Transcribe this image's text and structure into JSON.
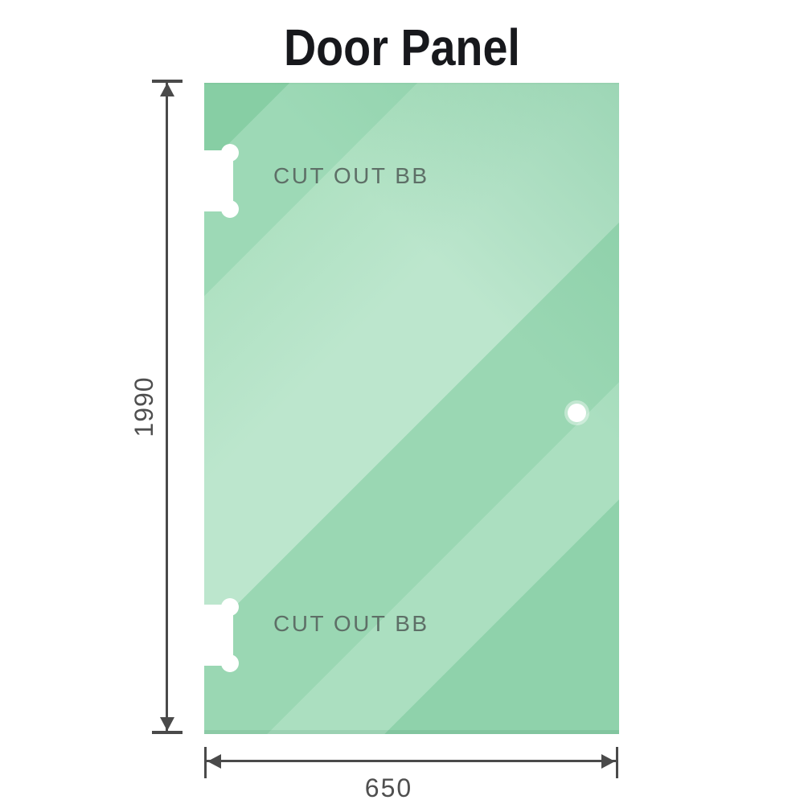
{
  "title": "Door Panel",
  "panel": {
    "top_cutout_label": "CUT OUT BB",
    "bottom_cutout_label": "CUT OUT BB",
    "glass_base_color": "#9dd9b6",
    "glass_highlight_color": "#bce6cd",
    "glass_shadow_color": "#87cea4",
    "cutout_label_color": "#5e6f67"
  },
  "dimensions": {
    "height_value": "1990",
    "width_value": "650",
    "line_color": "#4a4a4a",
    "label_color": "#4f4f4f"
  }
}
